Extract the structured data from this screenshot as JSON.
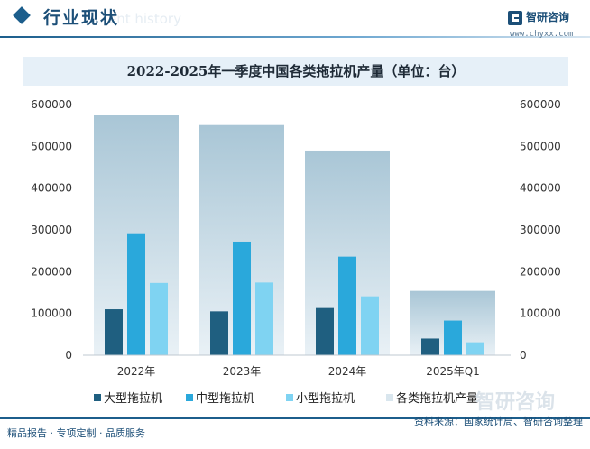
{
  "header": {
    "section_title": "行业现状",
    "ghost_text": "ent history",
    "logo_name": "智研咨询",
    "logo_url": "www.chyxx.com"
  },
  "chart_data": {
    "type": "bar",
    "title": "2022-2025年一季度中国各类拖拉机产量（单位：台）",
    "categories": [
      "2022年",
      "2023年",
      "2024年",
      "2025年Q1"
    ],
    "series": [
      {
        "name": "大型拖拉机",
        "values": [
          110000,
          105000,
          113000,
          40000
        ],
        "color": "#1f5f80"
      },
      {
        "name": "中型拖拉机",
        "values": [
          292000,
          272000,
          236000,
          83000
        ],
        "color": "#2aa8db"
      },
      {
        "name": "小型拖拉机",
        "values": [
          173000,
          174000,
          141000,
          31000
        ],
        "color": "#7fd3f2"
      }
    ],
    "total_series": {
      "name": "各类拖拉机产量",
      "values": [
        575000,
        551000,
        490000,
        154000
      ]
    },
    "ylim": [
      0,
      600000
    ],
    "yticks": [
      "0",
      "100000",
      "200000",
      "300000",
      "400000",
      "500000",
      "600000"
    ],
    "legend_position": "bottom",
    "grid": false
  },
  "footer": {
    "left_text": "精品报告 · 专项定制 · 品质服务",
    "source_text": "资料来源：国家统计局、智研咨询整理",
    "watermark": "智研咨询"
  }
}
